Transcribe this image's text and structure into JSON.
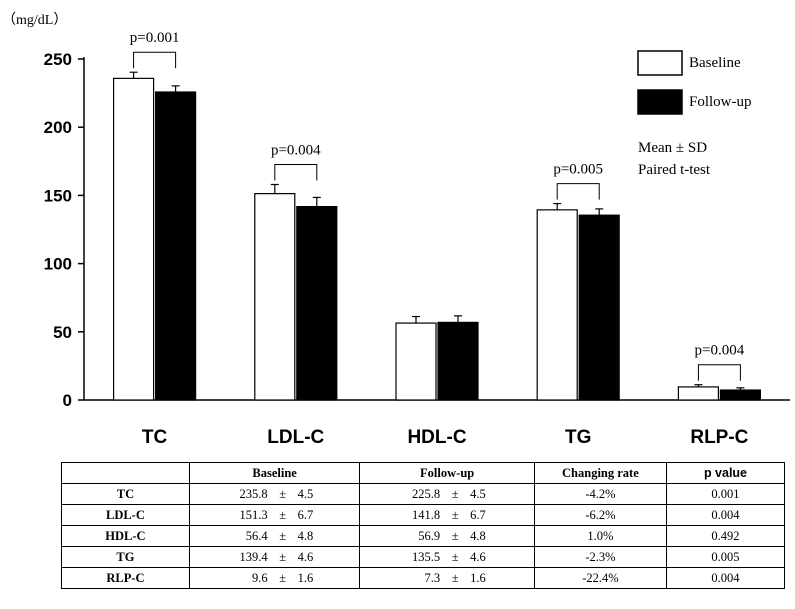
{
  "chart_data": {
    "type": "bar",
    "unit_label": "（mg/dL）",
    "categories": [
      "TC",
      "LDL-C",
      "HDL-C",
      "TG",
      "RLP-C"
    ],
    "series": [
      {
        "name": "Baseline",
        "fill": "#ffffff",
        "values": [
          235.8,
          151.3,
          56.4,
          139.4,
          9.6
        ],
        "sd": [
          4.5,
          6.7,
          4.8,
          4.6,
          1.6
        ]
      },
      {
        "name": "Follow-up",
        "fill": "#000000",
        "values": [
          225.8,
          141.8,
          56.9,
          135.5,
          7.3
        ],
        "sd": [
          4.5,
          6.7,
          4.8,
          4.6,
          1.6
        ]
      }
    ],
    "ylim": [
      0,
      250
    ],
    "yticks": [
      "0",
      "50",
      "100",
      "150",
      "200",
      "250"
    ],
    "legend_position": "top-right",
    "annotations": [
      {
        "category": "TC",
        "text": "p=0.001"
      },
      {
        "category": "LDL-C",
        "text": "p=0.004"
      },
      {
        "category": "TG",
        "text": "p=0.005"
      },
      {
        "category": "RLP-C",
        "text": "p=0.004"
      }
    ],
    "notes": [
      "Mean ± SD",
      "Paired t-test"
    ]
  },
  "table": {
    "headers": [
      "",
      "Baseline",
      "Follow-up",
      "Changing rate",
      "p value"
    ],
    "pm": "±",
    "rows": [
      {
        "label": "TC",
        "baseline_mean": "235.8",
        "baseline_sd": "4.5",
        "followup_mean": "225.8",
        "followup_sd": "4.5",
        "rate": "-4.2%",
        "p": "0.001"
      },
      {
        "label": "LDL-C",
        "baseline_mean": "151.3",
        "baseline_sd": "6.7",
        "followup_mean": "141.8",
        "followup_sd": "6.7",
        "rate": "-6.2%",
        "p": "0.004"
      },
      {
        "label": "HDL-C",
        "baseline_mean": "56.4",
        "baseline_sd": "4.8",
        "followup_mean": "56.9",
        "followup_sd": "4.8",
        "rate": "1.0%",
        "p": "0.492"
      },
      {
        "label": "TG",
        "baseline_mean": "139.4",
        "baseline_sd": "4.6",
        "followup_mean": "135.5",
        "followup_sd": "4.6",
        "rate": "-2.3%",
        "p": "0.005"
      },
      {
        "label": "RLP-C",
        "baseline_mean": "9.6",
        "baseline_sd": "1.6",
        "followup_mean": "7.3",
        "followup_sd": "1.6",
        "rate": "-22.4%",
        "p": "0.004"
      }
    ]
  }
}
